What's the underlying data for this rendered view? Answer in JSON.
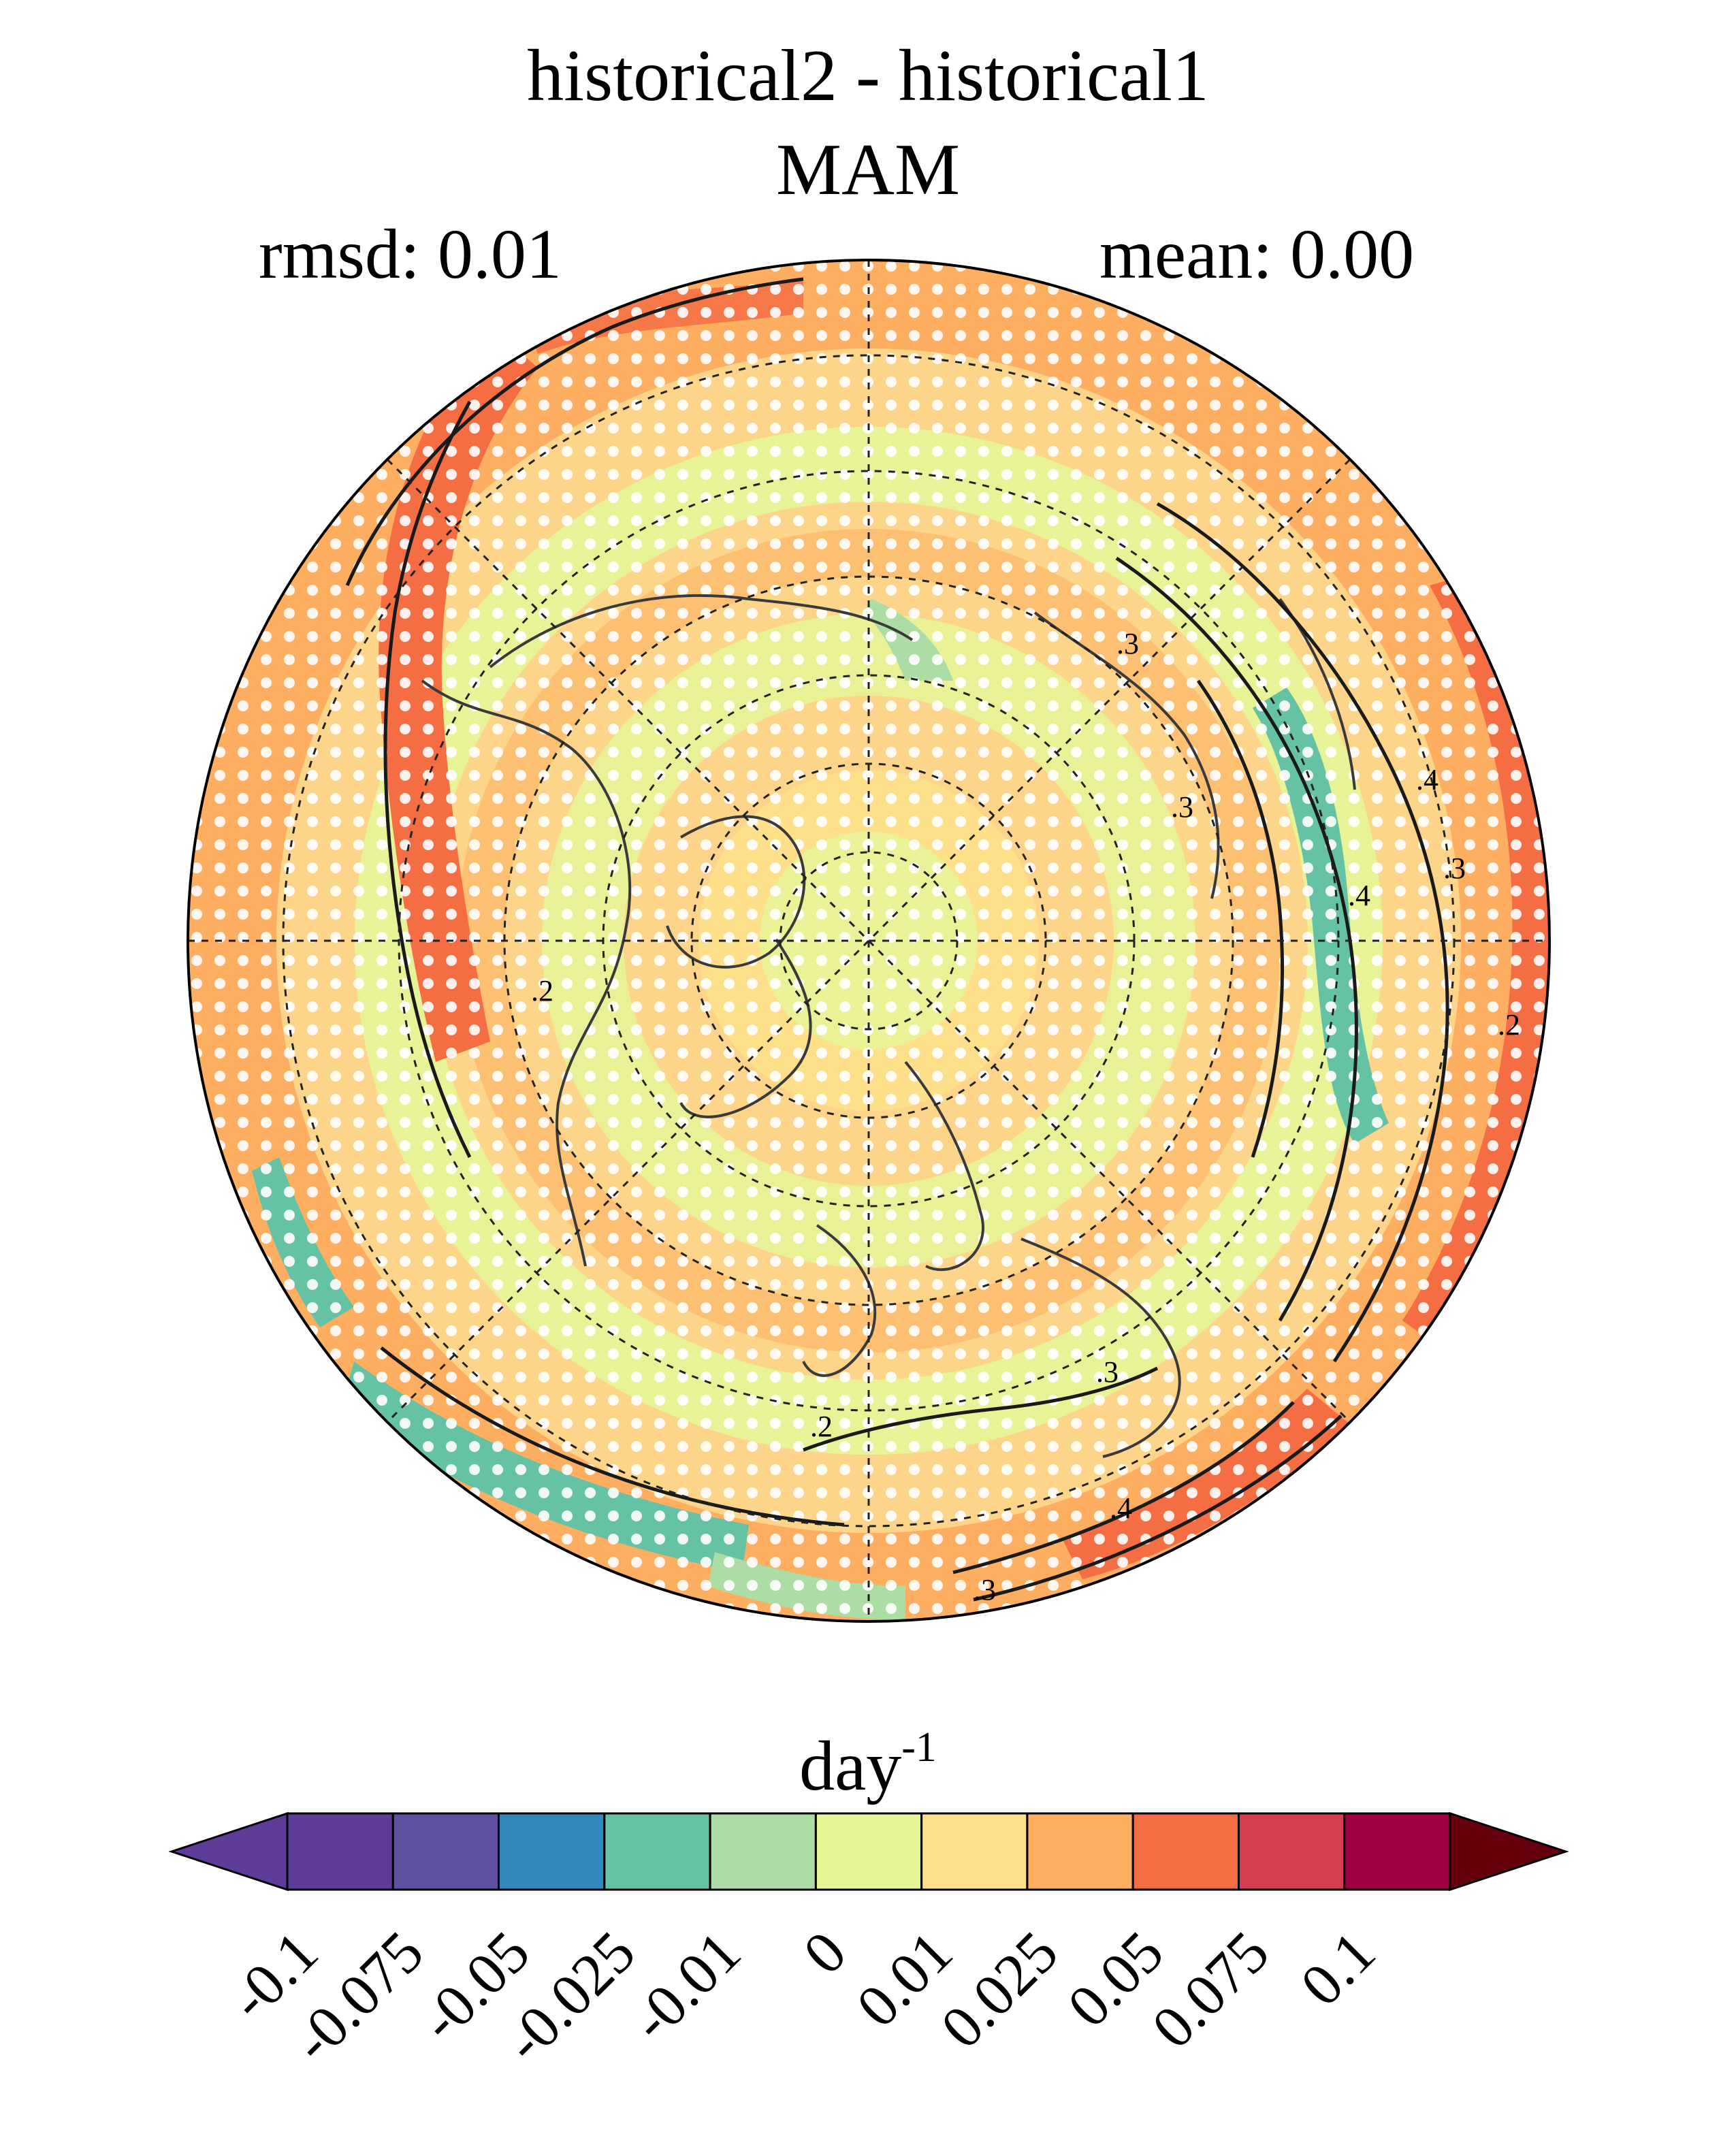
{
  "title": {
    "line1": "historical2 - historical1",
    "line2": "MAM"
  },
  "stats": {
    "rmsd_label": "rmsd: 0.01",
    "mean_label": "mean: 0.00"
  },
  "map": {
    "projection": "north polar stereographic",
    "contour_labels": [
      ".2",
      ".3",
      ".3",
      ".4",
      ".4",
      ".3",
      ".2",
      ".2",
      ".3",
      ".4",
      ".3"
    ],
    "stippling": "white dots mark non-significant regions",
    "dominant_colors": {
      "ring_max": "#f26d45",
      "midlatitude": "#fdae61",
      "high_latitude": "#fee08b",
      "neutral": "#e6f598",
      "weak_negative": "#abdda4",
      "negative": "#66c2a5"
    }
  },
  "colorbar": {
    "units_base": "day",
    "units_exp": "-1",
    "ticks": [
      "-0.1",
      "-0.075",
      "-0.05",
      "-0.025",
      "-0.01",
      "0",
      "0.01",
      "0.025",
      "0.05",
      "0.075",
      "0.1"
    ],
    "colors": [
      "#5e3c99",
      "#6050a3",
      "#3288bd",
      "#66c2a5",
      "#abdda4",
      "#e6f598",
      "#fee08b",
      "#fdae61",
      "#f46d43",
      "#d53e4f",
      "#9e0142"
    ],
    "under_color": "#5e3c99",
    "over_color": "#67000d"
  }
}
